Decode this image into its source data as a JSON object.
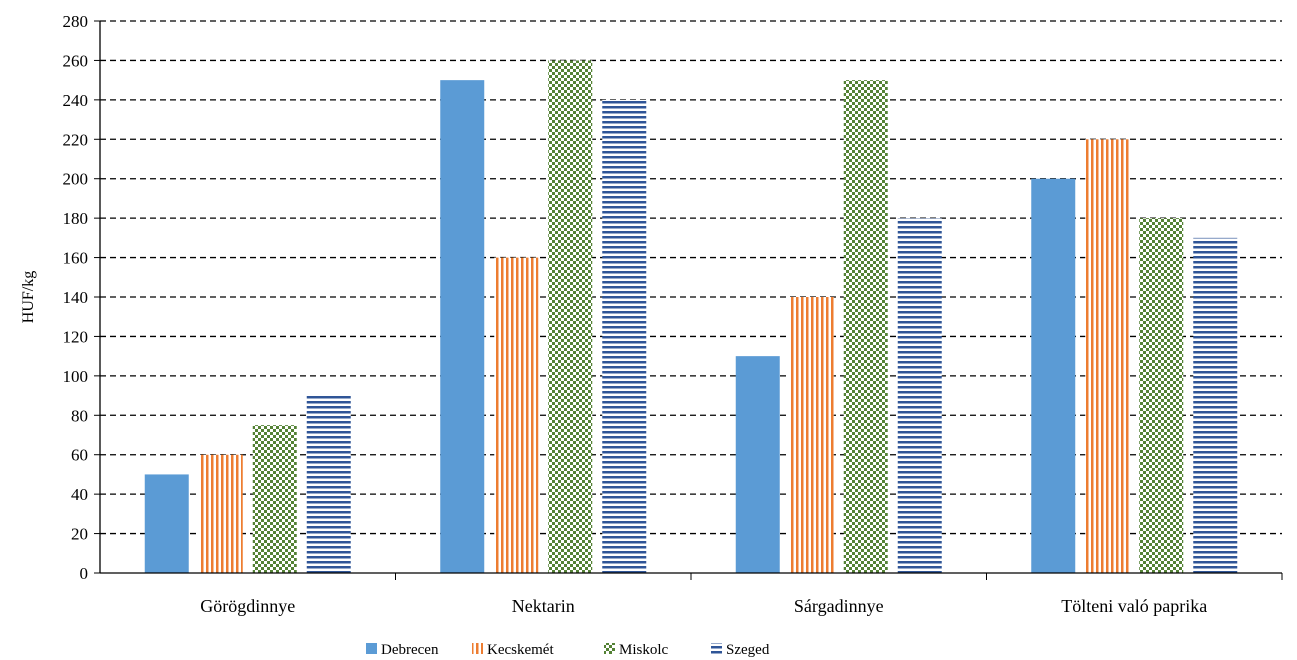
{
  "chart_data": {
    "type": "bar",
    "title": "",
    "xlabel": "",
    "ylabel": "HUF/kg",
    "ylim": [
      0,
      280
    ],
    "ytick_step": 20,
    "yticks": [
      "0",
      "20",
      "40",
      "60",
      "80",
      "100",
      "120",
      "140",
      "160",
      "180",
      "200",
      "220",
      "240",
      "260",
      "280"
    ],
    "grid": true,
    "legend_position": "bottom",
    "categories": [
      "Görögdinnye",
      "Nektarin",
      "Sárgadinnye",
      "Tölteni való paprika"
    ],
    "series": [
      {
        "name": "Debrecen",
        "values": [
          50,
          250,
          110,
          200
        ],
        "color": "#5B9BD5",
        "pattern": "solid"
      },
      {
        "name": "Kecskemét",
        "values": [
          60,
          160,
          140,
          220
        ],
        "color": "#ED7D31",
        "pattern": "vertical-stripes"
      },
      {
        "name": "Miskolc",
        "values": [
          75,
          260,
          250,
          180
        ],
        "color": "#548235",
        "pattern": "checker"
      },
      {
        "name": "Szeged",
        "values": [
          90,
          240,
          180,
          170
        ],
        "color": "#2F5597",
        "pattern": "horizontal-stripes"
      }
    ]
  }
}
